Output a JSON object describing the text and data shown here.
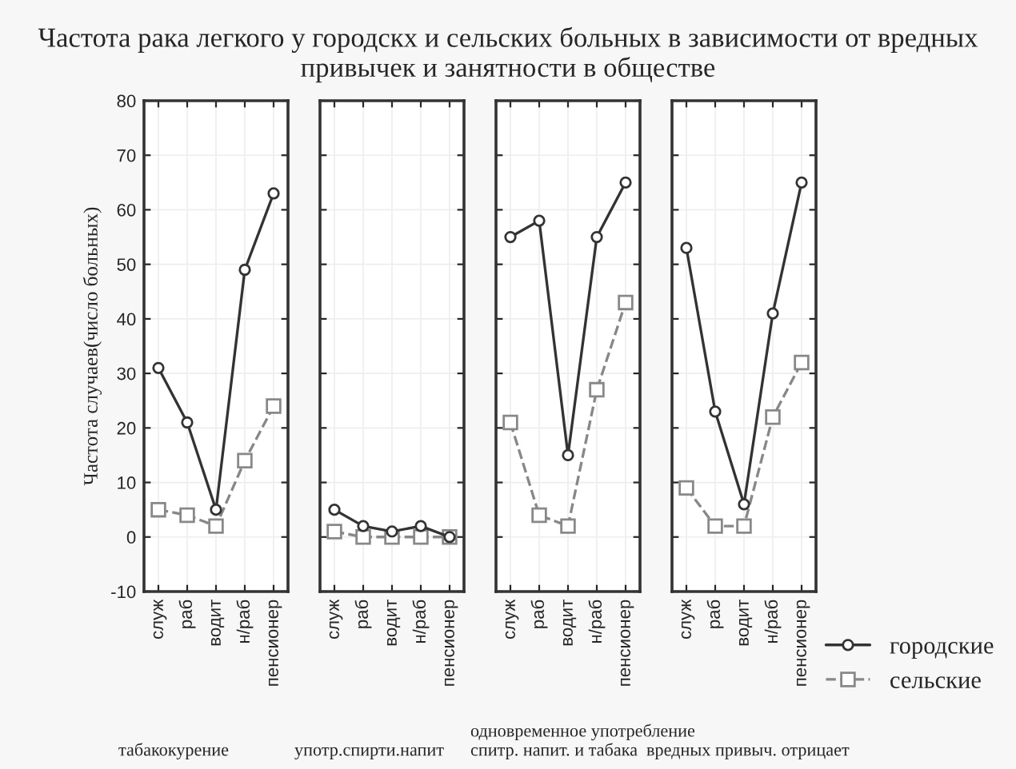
{
  "chart_data": [
    {
      "type": "line",
      "title": "Частота рака легкого у городскх и сельских больных в зависимости от вредных привычек и занятности в обществе",
      "ylabel": "Частота случаев(число больных)",
      "xlabel": "табакокурение",
      "categories": [
        "служ",
        "раб",
        "водит",
        "н/раб",
        "пенсионер"
      ],
      "ylim": [
        -10,
        80
      ],
      "yticks": [
        -10,
        0,
        10,
        20,
        30,
        40,
        50,
        60,
        70,
        80
      ],
      "grid": true,
      "series": [
        {
          "color": "#333333",
          "marker": "circle",
          "line_style": "solid",
          "values": [
            31,
            21,
            5,
            49,
            63
          ]
        },
        {
          "color": "#888888",
          "marker": "square",
          "line_style": "dashed",
          "values": [
            5,
            4,
            2,
            14,
            24
          ]
        }
      ]
    },
    {
      "type": "line",
      "xlabel": "употр.спирти.напит",
      "categories": [
        "служ",
        "раб",
        "водит",
        "н/раб",
        "пенсионер"
      ],
      "ylim": [
        -10,
        80
      ],
      "yticks": [
        -10,
        0,
        10,
        20,
        30,
        40,
        50,
        60,
        70,
        80
      ],
      "grid": true,
      "tick_labels": "x",
      "series": [
        {
          "color": "#333333",
          "marker": "circle",
          "line_style": "solid",
          "values": [
            5,
            2,
            1,
            2,
            0
          ]
        },
        {
          "color": "#888888",
          "marker": "square",
          "line_style": "dashed",
          "values": [
            1,
            0,
            0,
            0,
            0
          ]
        }
      ]
    },
    {
      "type": "line",
      "xlabel": "одновременное употребление спитр. напит. и табака",
      "categories": [
        "служ",
        "раб",
        "водит",
        "н/раб",
        "пенсионер"
      ],
      "ylim": [
        -10,
        80
      ],
      "yticks": [
        -10,
        0,
        10,
        20,
        30,
        40,
        50,
        60,
        70,
        80
      ],
      "grid": true,
      "tick_labels": "x",
      "series": [
        {
          "color": "#333333",
          "marker": "circle",
          "line_style": "solid",
          "values": [
            55,
            58,
            15,
            55,
            65
          ]
        },
        {
          "color": "#888888",
          "marker": "square",
          "line_style": "dashed",
          "values": [
            21,
            4,
            2,
            27,
            43
          ]
        }
      ]
    },
    {
      "type": "line",
      "xlabel": "вредных привыч. отрицает",
      "categories": [
        "служ",
        "раб",
        "водит",
        "н/раб",
        "пенсионер"
      ],
      "ylim": [
        -10,
        80
      ],
      "yticks": [
        -10,
        0,
        10,
        20,
        30,
        40,
        50,
        60,
        70,
        80
      ],
      "grid": true,
      "tick_labels": "x",
      "legend": "bottom right",
      "series": [
        {
          "name": "городские",
          "color": "#333333",
          "marker": "circle",
          "line_style": "solid",
          "values": [
            53,
            23,
            6,
            41,
            65
          ]
        },
        {
          "name": "сельские",
          "color": "#888888",
          "marker": "square",
          "line_style": "dashed",
          "values": [
            9,
            2,
            2,
            22,
            32
          ]
        }
      ]
    }
  ]
}
